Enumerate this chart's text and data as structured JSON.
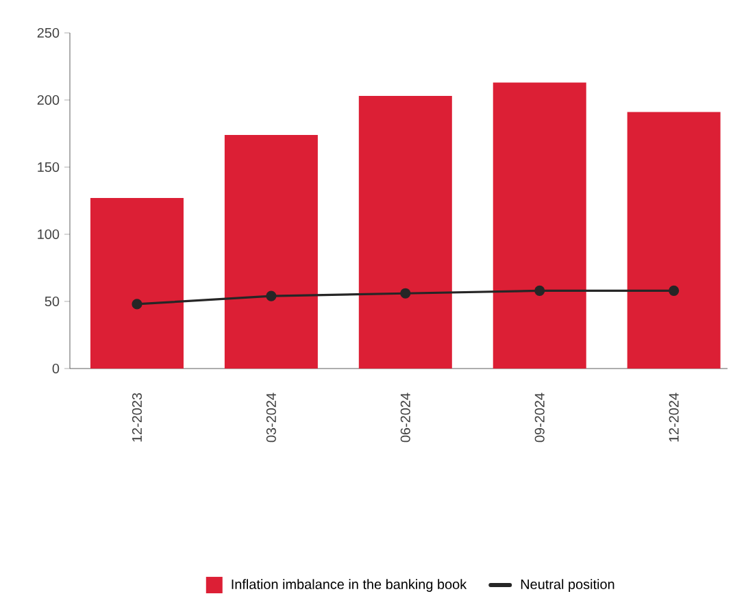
{
  "chart_data": {
    "type": "bar",
    "categories": [
      "12-2023",
      "03-2024",
      "06-2024",
      "09-2024",
      "12-2024"
    ],
    "series": [
      {
        "name": "Inflation imbalance in the banking book",
        "color": "#dc1f35",
        "values": [
          127,
          174,
          203,
          213,
          191
        ]
      },
      {
        "name": "Neutral position",
        "type": "line",
        "color": "#262626",
        "values": [
          48,
          54,
          56,
          58,
          58
        ]
      }
    ],
    "ylim": [
      0,
      250
    ],
    "yticks": [
      0,
      50,
      100,
      150,
      200,
      250
    ],
    "legend": "bottom",
    "marker": "circle",
    "line_style": "solid"
  }
}
